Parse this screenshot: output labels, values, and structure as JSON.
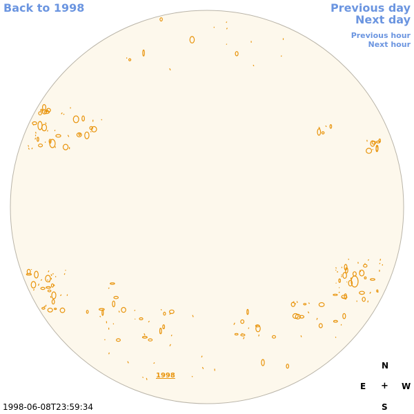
{
  "nav": {
    "back_label": "Back to 1998",
    "prev_day_label": "Previous day",
    "next_day_label": "Next day",
    "prev_hour_label": "Previous hour",
    "next_hour_label": "Next hour"
  },
  "disk": {
    "fill_color": "#fdf8ec",
    "border_color": "#b9b4a8",
    "contour_color": "#e8930a"
  },
  "year_link": "1998",
  "compass": {
    "north": "N",
    "east": "E",
    "center": "+",
    "west": "W",
    "south": "S"
  },
  "timestamp": "1998-06-08T23:59:34"
}
